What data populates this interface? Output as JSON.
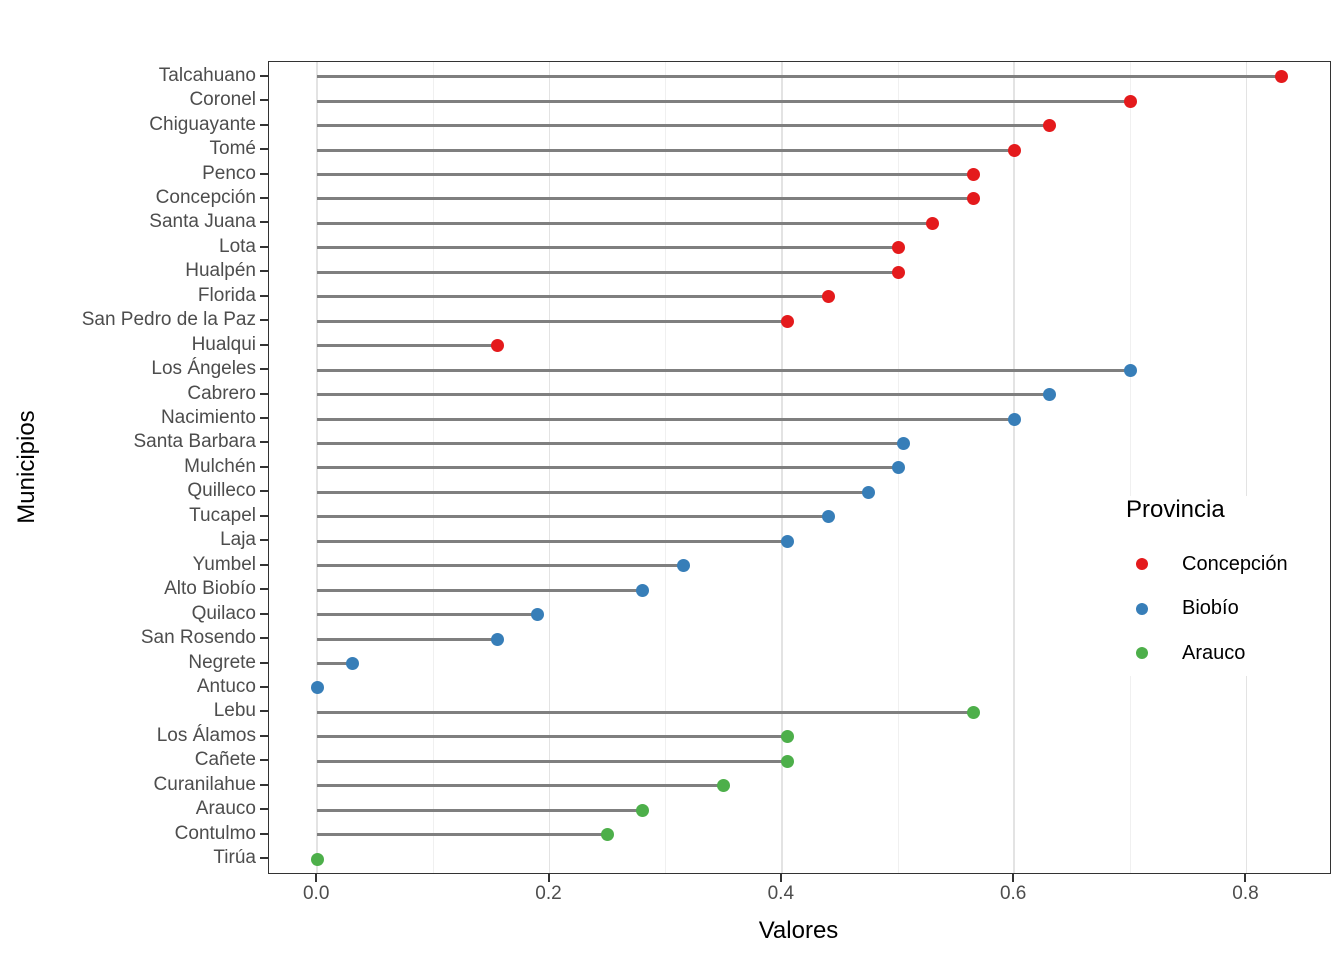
{
  "figure": {
    "y_axis_title": "Municipios",
    "x_axis_title": "Valores",
    "x_ticks": [
      {
        "label": "0.0",
        "value": 0.0
      },
      {
        "label": "0.2",
        "value": 0.2
      },
      {
        "label": "0.4",
        "value": 0.4
      },
      {
        "label": "0.6",
        "value": 0.6
      },
      {
        "label": "0.8",
        "value": 0.8
      }
    ],
    "grid": {
      "major": [
        0.0,
        0.2,
        0.4,
        0.6,
        0.8
      ],
      "minor": [
        0.1,
        0.3,
        0.5,
        0.7
      ]
    },
    "legend": {
      "title": "Provincia",
      "items": [
        {
          "label": "Concepción",
          "color": "#E41A1C"
        },
        {
          "label": "Biobío",
          "color": "#377EB8"
        },
        {
          "label": "Arauco",
          "color": "#4DAF4A"
        }
      ]
    },
    "colors": {
      "stem": "#7f7f7f",
      "panel_border": "#333333",
      "grid_major": "#e3e3e3",
      "grid_minor": "#f0f0f0",
      "tick": "#333333",
      "axis_text": "#4d4d4d",
      "title_text": "#000000"
    }
  },
  "chart_data": {
    "type": "scatter",
    "style": "lollipop / Cleveland dot plot with horizontal stems starting at 0",
    "title": "",
    "xlabel": "Valores",
    "ylabel": "Municipios",
    "xlim": [
      0,
      0.83
    ],
    "x_tick_values": [
      0.0,
      0.2,
      0.4,
      0.6,
      0.8
    ],
    "grid": "vertical only (major 0.2 steps, minor 0.1 steps)",
    "legend_title": "Provincia",
    "legend_position": "inside-right",
    "groups": [
      "Concepción",
      "Biobío",
      "Arauco"
    ],
    "points": [
      {
        "label": "Talcahuano",
        "value": 0.83,
        "group": "Concepción"
      },
      {
        "label": "Coronel",
        "value": 0.7,
        "group": "Concepción"
      },
      {
        "label": "Chiguayante",
        "value": 0.63,
        "group": "Concepción"
      },
      {
        "label": "Tomé",
        "value": 0.6,
        "group": "Concepción"
      },
      {
        "label": "Penco",
        "value": 0.565,
        "group": "Concepción"
      },
      {
        "label": "Concepción",
        "value": 0.565,
        "group": "Concepción"
      },
      {
        "label": "Santa Juana",
        "value": 0.53,
        "group": "Concepción"
      },
      {
        "label": "Lota",
        "value": 0.5,
        "group": "Concepción"
      },
      {
        "label": "Hualpén",
        "value": 0.5,
        "group": "Concepción"
      },
      {
        "label": "Florida",
        "value": 0.44,
        "group": "Concepción"
      },
      {
        "label": "San Pedro de la Paz",
        "value": 0.405,
        "group": "Concepción"
      },
      {
        "label": "Hualqui",
        "value": 0.155,
        "group": "Concepción"
      },
      {
        "label": "Los Ángeles",
        "value": 0.7,
        "group": "Biobío"
      },
      {
        "label": "Cabrero",
        "value": 0.63,
        "group": "Biobío"
      },
      {
        "label": "Nacimiento",
        "value": 0.6,
        "group": "Biobío"
      },
      {
        "label": "Santa Barbara",
        "value": 0.505,
        "group": "Biobío"
      },
      {
        "label": "Mulchén",
        "value": 0.5,
        "group": "Biobío"
      },
      {
        "label": "Quilleco",
        "value": 0.475,
        "group": "Biobío"
      },
      {
        "label": "Tucapel",
        "value": 0.44,
        "group": "Biobío"
      },
      {
        "label": "Laja",
        "value": 0.405,
        "group": "Biobío"
      },
      {
        "label": "Yumbel",
        "value": 0.315,
        "group": "Biobío"
      },
      {
        "label": "Alto Biobío",
        "value": 0.28,
        "group": "Biobío"
      },
      {
        "label": "Quilaco",
        "value": 0.19,
        "group": "Biobío"
      },
      {
        "label": "San Rosendo",
        "value": 0.155,
        "group": "Biobío"
      },
      {
        "label": "Negrete",
        "value": 0.03,
        "group": "Biobío"
      },
      {
        "label": "Antuco",
        "value": 0.0,
        "group": "Biobío"
      },
      {
        "label": "Lebu",
        "value": 0.565,
        "group": "Arauco"
      },
      {
        "label": "Los Álamos",
        "value": 0.405,
        "group": "Arauco"
      },
      {
        "label": "Cañete",
        "value": 0.405,
        "group": "Arauco"
      },
      {
        "label": "Curanilahue",
        "value": 0.35,
        "group": "Arauco"
      },
      {
        "label": "Arauco",
        "value": 0.28,
        "group": "Arauco"
      },
      {
        "label": "Contulmo",
        "value": 0.25,
        "group": "Arauco"
      },
      {
        "label": "Tirúa",
        "value": 0.0,
        "group": "Arauco"
      }
    ]
  }
}
